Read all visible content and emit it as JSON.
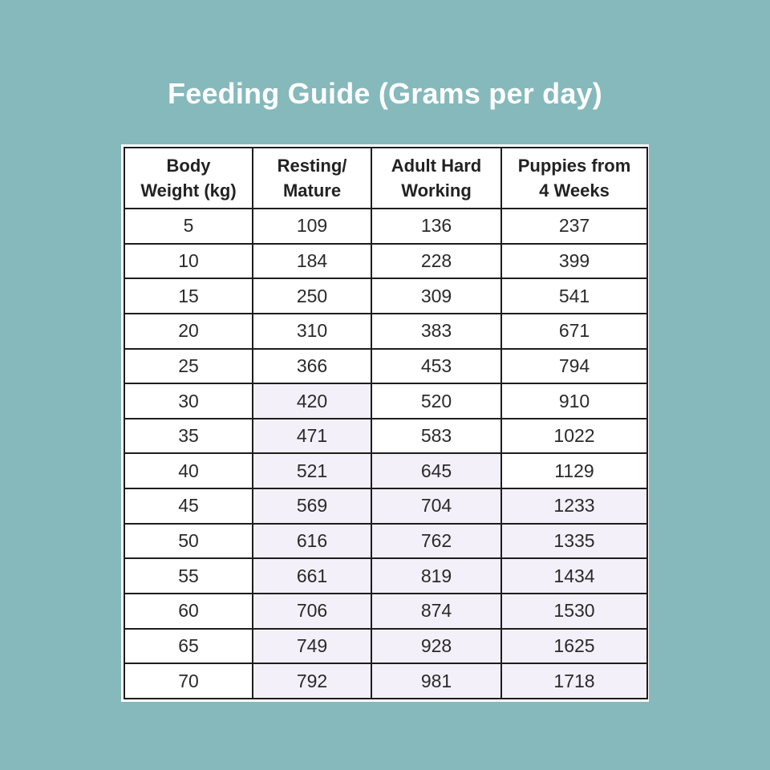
{
  "title": "Feeding Guide (Grams per day)",
  "table": {
    "headers": [
      [
        "Body",
        "Weight (kg)"
      ],
      [
        "Resting/",
        "Mature"
      ],
      [
        "Adult Hard",
        "Working"
      ],
      [
        "Puppies from",
        "4 Weeks"
      ]
    ],
    "rows": [
      [
        "5",
        "109",
        "136",
        "237"
      ],
      [
        "10",
        "184",
        "228",
        "399"
      ],
      [
        "15",
        "250",
        "309",
        "541"
      ],
      [
        "20",
        "310",
        "383",
        "671"
      ],
      [
        "25",
        "366",
        "453",
        "794"
      ],
      [
        "30",
        "420",
        "520",
        "910"
      ],
      [
        "35",
        "471",
        "583",
        "1022"
      ],
      [
        "40",
        "521",
        "645",
        "1129"
      ],
      [
        "45",
        "569",
        "704",
        "1233"
      ],
      [
        "50",
        "616",
        "762",
        "1335"
      ],
      [
        "55",
        "661",
        "819",
        "1434"
      ],
      [
        "60",
        "706",
        "874",
        "1530"
      ],
      [
        "65",
        "749",
        "928",
        "1625"
      ],
      [
        "70",
        "792",
        "981",
        "1718"
      ]
    ],
    "shaded_cells": [
      [
        5,
        1
      ],
      [
        6,
        1
      ],
      [
        7,
        1
      ],
      [
        7,
        2
      ],
      [
        8,
        1
      ],
      [
        8,
        2
      ],
      [
        8,
        3
      ],
      [
        9,
        1
      ],
      [
        9,
        2
      ],
      [
        9,
        3
      ],
      [
        10,
        1
      ],
      [
        10,
        2
      ],
      [
        10,
        3
      ],
      [
        11,
        1
      ],
      [
        11,
        2
      ],
      [
        11,
        3
      ],
      [
        12,
        1
      ],
      [
        12,
        2
      ],
      [
        12,
        3
      ],
      [
        13,
        1
      ],
      [
        13,
        2
      ],
      [
        13,
        3
      ]
    ],
    "shade_color": "#f3f0f9"
  },
  "colors": {
    "background": "#86b9bb",
    "title_text": "#ffffff",
    "table_border": "#1d1d1d"
  }
}
